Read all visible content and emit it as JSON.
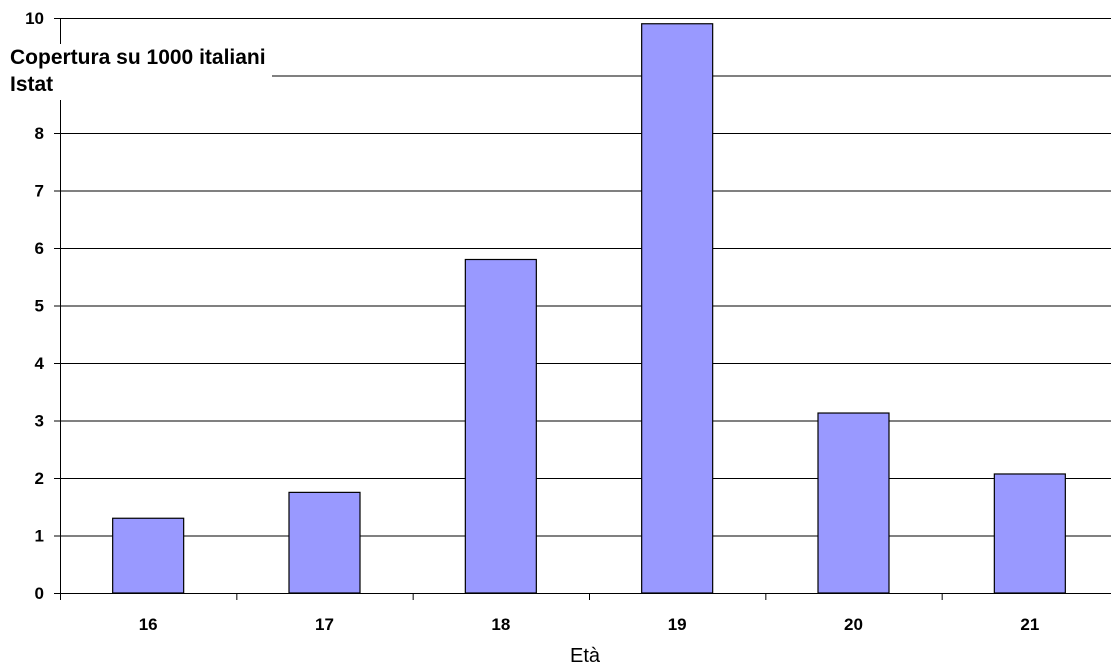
{
  "chart_data": {
    "type": "bar",
    "categories": [
      "16",
      "17",
      "18",
      "19",
      "20",
      "21"
    ],
    "values": [
      1.3,
      1.75,
      5.8,
      9.9,
      3.13,
      2.07
    ],
    "title": "",
    "xlabel": "Età",
    "ylabel": [
      "Copertura su 1000 italiani",
      "Istat"
    ],
    "ylim": [
      0,
      10
    ],
    "yticks": [
      0,
      1,
      2,
      3,
      4,
      5,
      6,
      7,
      8,
      10
    ],
    "grid": true,
    "legend": "none",
    "colors": {
      "bar_fill": "#9999FF",
      "bar_stroke": "#000000",
      "grid": "#000000"
    }
  }
}
